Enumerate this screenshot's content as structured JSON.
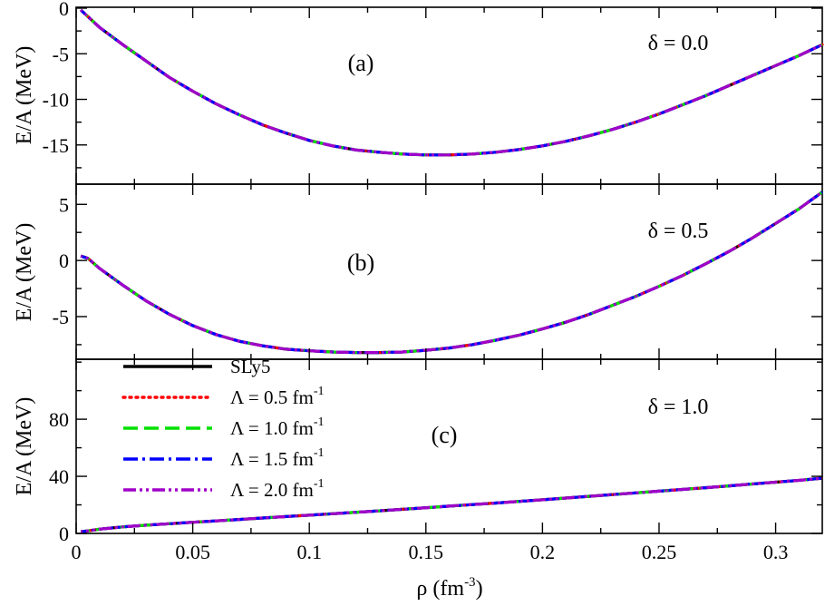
{
  "chart_data": {
    "type": "line",
    "xlabel": "ρ (fm",
    "xlabel_sup": "-3",
    "xlabel_tail": ")",
    "xlim": [
      0,
      0.32
    ],
    "xticks": [
      "0",
      "0.05",
      "0.1",
      "0.15",
      "0.2",
      "0.25",
      "0.3"
    ],
    "xtick_values": [
      0,
      0.05,
      0.1,
      0.15,
      0.2,
      0.25,
      0.3
    ],
    "legend": {
      "placement": "inside panel (c), upper-left",
      "entries": [
        {
          "key": "sly5",
          "text": "SLy5",
          "sup": "",
          "color": "#000000",
          "dash": "solid"
        },
        {
          "key": "l05",
          "text": "Λ = 0.5 fm",
          "sup": "-1",
          "color": "#ff0000",
          "dash": "dotted"
        },
        {
          "key": "l10",
          "text": "Λ  = 1.0 fm",
          "sup": "-1",
          "color": "#00e000",
          "dash": "dashed"
        },
        {
          "key": "l15",
          "text": "Λ = 1.5 fm",
          "sup": "-1",
          "color": "#0000ff",
          "dash": "dash-dot"
        },
        {
          "key": "l20",
          "text": "Λ = 2.0 fm",
          "sup": "-1",
          "color": "#a000c8",
          "dash": "dash-dot-dot"
        }
      ]
    },
    "panels": [
      {
        "label": "(a)",
        "delta_label": "δ = 0.0",
        "ylabel": "E/A (MeV)",
        "ylim": [
          -19.3,
          0.1
        ],
        "yticks": [
          "0",
          "-5",
          "-10",
          "-15"
        ],
        "ytick_values": [
          0,
          -5,
          -10,
          -15
        ],
        "x": [
          0.002,
          0.01,
          0.02,
          0.03,
          0.04,
          0.05,
          0.06,
          0.07,
          0.08,
          0.09,
          0.1,
          0.11,
          0.12,
          0.13,
          0.14,
          0.15,
          0.16,
          0.17,
          0.18,
          0.19,
          0.2,
          0.21,
          0.22,
          0.23,
          0.24,
          0.25,
          0.26,
          0.27,
          0.28,
          0.29,
          0.3,
          0.31,
          0.32
        ],
        "y": [
          -0.2,
          -2.1,
          -4.0,
          -5.8,
          -7.6,
          -9.1,
          -10.5,
          -11.7,
          -12.8,
          -13.7,
          -14.5,
          -15.1,
          -15.55,
          -15.8,
          -16.0,
          -16.1,
          -16.1,
          -16.0,
          -15.8,
          -15.5,
          -15.1,
          -14.6,
          -14.0,
          -13.3,
          -12.5,
          -11.6,
          -10.6,
          -9.6,
          -8.5,
          -7.4,
          -6.3,
          -5.2,
          -4.0
        ]
      },
      {
        "label": "(b)",
        "delta_label": "δ = 0.5",
        "ylabel": "E/A (MeV)",
        "ylim": [
          -8.8,
          6.8
        ],
        "yticks": [
          "5",
          "0",
          "-5"
        ],
        "ytick_values": [
          5,
          0,
          -5
        ],
        "x": [
          0.002,
          0.005,
          0.01,
          0.02,
          0.03,
          0.04,
          0.05,
          0.06,
          0.07,
          0.08,
          0.09,
          0.1,
          0.11,
          0.12,
          0.13,
          0.14,
          0.15,
          0.16,
          0.17,
          0.18,
          0.19,
          0.2,
          0.21,
          0.22,
          0.23,
          0.24,
          0.25,
          0.26,
          0.27,
          0.28,
          0.29,
          0.3,
          0.31,
          0.32
        ],
        "y": [
          0.4,
          0.2,
          -0.7,
          -2.2,
          -3.6,
          -4.8,
          -5.8,
          -6.6,
          -7.2,
          -7.6,
          -7.9,
          -8.05,
          -8.15,
          -8.2,
          -8.2,
          -8.15,
          -8.0,
          -7.8,
          -7.5,
          -7.1,
          -6.65,
          -6.1,
          -5.5,
          -4.8,
          -4.0,
          -3.2,
          -2.3,
          -1.35,
          -0.3,
          0.8,
          2.0,
          3.3,
          4.6,
          6.1
        ]
      },
      {
        "label": "(c)",
        "delta_label": "δ = 1.0",
        "ylabel": "E/A (MeV)",
        "ylim": [
          0,
          122
        ],
        "yticks": [
          "0",
          "40",
          "80"
        ],
        "ytick_values": [
          0,
          40,
          80
        ],
        "x": [
          0.002,
          0.005,
          0.01,
          0.02,
          0.03,
          0.04,
          0.05,
          0.06,
          0.07,
          0.08,
          0.09,
          0.1,
          0.11,
          0.12,
          0.13,
          0.14,
          0.15,
          0.16,
          0.17,
          0.18,
          0.19,
          0.2,
          0.21,
          0.22,
          0.23,
          0.24,
          0.25,
          0.26,
          0.27,
          0.28,
          0.29,
          0.3,
          0.31,
          0.32
        ],
        "y": [
          1.2,
          1.8,
          3.0,
          4.6,
          5.8,
          6.8,
          7.8,
          8.8,
          9.8,
          10.8,
          11.8,
          12.8,
          13.8,
          14.8,
          15.8,
          16.9,
          18.0,
          19.1,
          20.2,
          21.3,
          22.4,
          23.6,
          24.8,
          26.0,
          27.2,
          28.4,
          29.6,
          30.8,
          32.0,
          33.3,
          34.6,
          35.9,
          37.2,
          38.7
        ]
      }
    ]
  }
}
